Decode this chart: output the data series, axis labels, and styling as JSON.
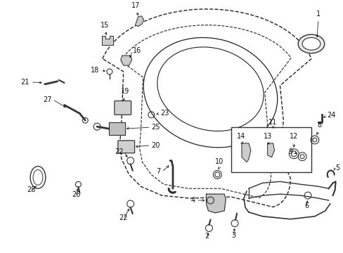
{
  "background_color": "#ffffff",
  "fig_width": 4.89,
  "fig_height": 3.6,
  "dpi": 100,
  "line_color": "#222222",
  "part_color": "#333333"
}
